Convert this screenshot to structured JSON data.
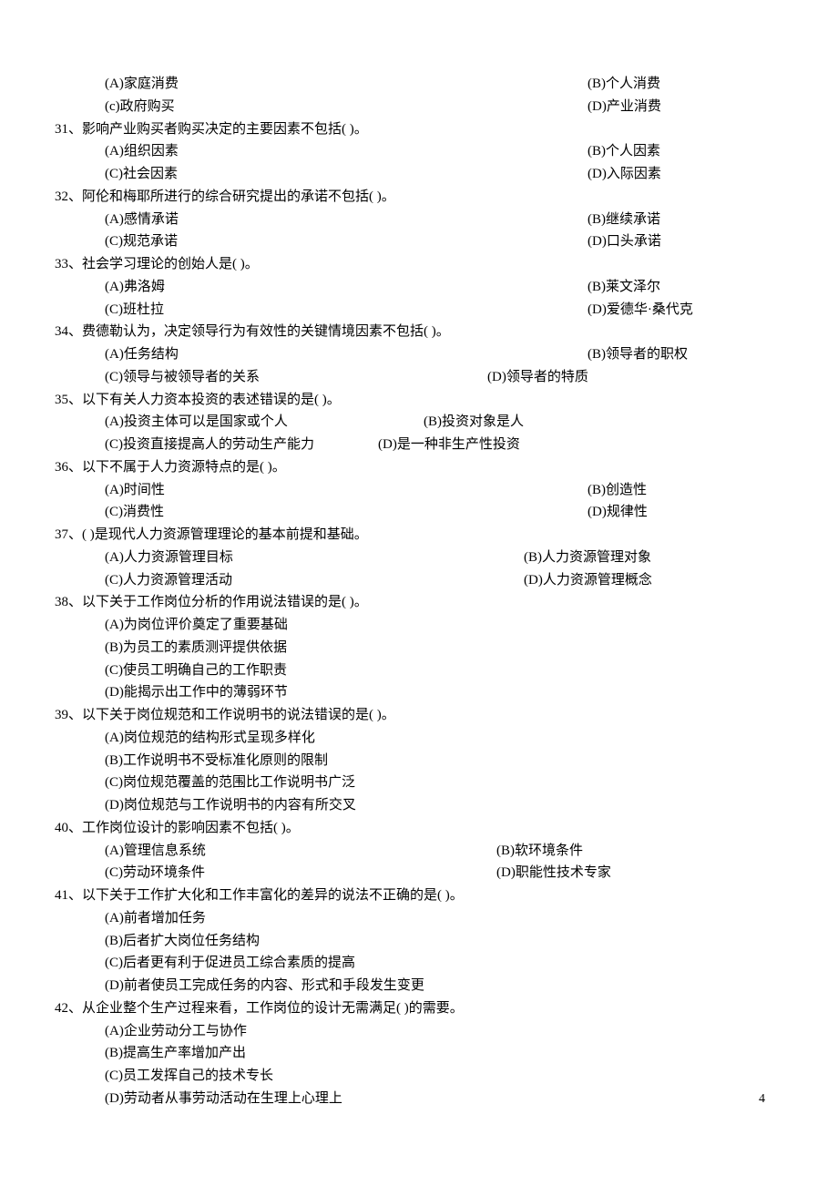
{
  "q_prev": {
    "optA": "(A)家庭消费",
    "optB": "(B)个人消费",
    "optC": "(c)政府购买",
    "optD": "(D)产业消费"
  },
  "q31": {
    "text": "31、影响产业购买者购买决定的主要因素不包括(        )。",
    "optA": "(A)组织因素",
    "optB": "(B)个人因素",
    "optC": "(C)社会因素",
    "optD": "(D)入际因素"
  },
  "q32": {
    "text": "32、阿伦和梅耶所进行的综合研究提出的承诺不包括(        )。",
    "optA": "(A)感情承诺",
    "optB": "(B)继续承诺",
    "optC": "(C)规范承诺",
    "optD": "(D)口头承诺"
  },
  "q33": {
    "text": "33、社会学习理论的创始人是(    )。",
    "optA": "(A)弗洛姆",
    "optB": "(B)莱文泽尔",
    "optC": "(C)班杜拉",
    "optD": "(D)爱德华·桑代克"
  },
  "q34": {
    "text": "34、费德勒认为，决定领导行为有效性的关键情境因素不包括(        )。",
    "optA": "(A)任务结构",
    "optB": "(B)领导者的职权",
    "optC": "(C)领导与被领导者的关系",
    "optD": "(D)领导者的特质"
  },
  "q35": {
    "text": "35、以下有关人力资本投资的表述错误的是(        )。",
    "optA": "(A)投资主体可以是国家或个人",
    "optB": "(B)投资对象是人",
    "optC": "(C)投资直接提高人的劳动生产能力",
    "optD": "(D)是一种非生产性投资"
  },
  "q36": {
    "text": "36、以下不属于人力资源特点的是(        )。",
    "optA": "(A)时间性",
    "optB": "(B)创造性",
    "optC": "(C)消费性",
    "optD": "(D)规律性"
  },
  "q37": {
    "text": "37、(        )是现代人力资源管理理论的基本前提和基础。",
    "optA": "(A)人力资源管理目标",
    "optB": "(B)人力资源管理对象",
    "optC": "(C)人力资源管理活动",
    "optD": "(D)人力资源管理概念"
  },
  "q38": {
    "text": "38、以下关于工作岗位分析的作用说法错误的是(        )。",
    "optA": "(A)为岗位评价奠定了重要基础",
    "optB": "(B)为员工的素质测评提供依据",
    "optC": "(C)使员工明确自己的工作职责",
    "optD": "(D)能揭示出工作中的薄弱环节"
  },
  "q39": {
    "text": "39、以下关于岗位规范和工作说明书的说法错误的是(        )。",
    "optA": "(A)岗位规范的结构形式呈现多样化",
    "optB": "(B)工作说明书不受标准化原则的限制",
    "optC": "(C)岗位规范覆盖的范围比工作说明书广泛",
    "optD": "(D)岗位规范与工作说明书的内容有所交叉"
  },
  "q40": {
    "text": "40、工作岗位设计的影响因素不包括(    )。",
    "optA": "(A)管理信息系统",
    "optB": "(B)软环境条件",
    "optC": "(C)劳动环境条件",
    "optD": "(D)职能性技术专家"
  },
  "q41": {
    "text": "41、以下关于工作扩大化和工作丰富化的差异的说法不正确的是(        )。",
    "optA": "(A)前者增加任务",
    "optB": "(B)后者扩大岗位任务结构",
    "optC": "(C)后者更有利于促进员工综合素质的提高",
    "optD": "(D)前者使员工完成任务的内容、形式和手段发生变更"
  },
  "q42": {
    "text": "42、从企业整个生产过程来看，工作岗位的设计无需满足(        )的需要。",
    "optA": "(A)企业劳动分工与协作",
    "optB": "(B)提高生产率增加产出",
    "optC": "(C)员工发挥自己的技术专长",
    "optD": "(D)劳动者从事劳动活动在生理上心理上"
  },
  "page_number": "4"
}
